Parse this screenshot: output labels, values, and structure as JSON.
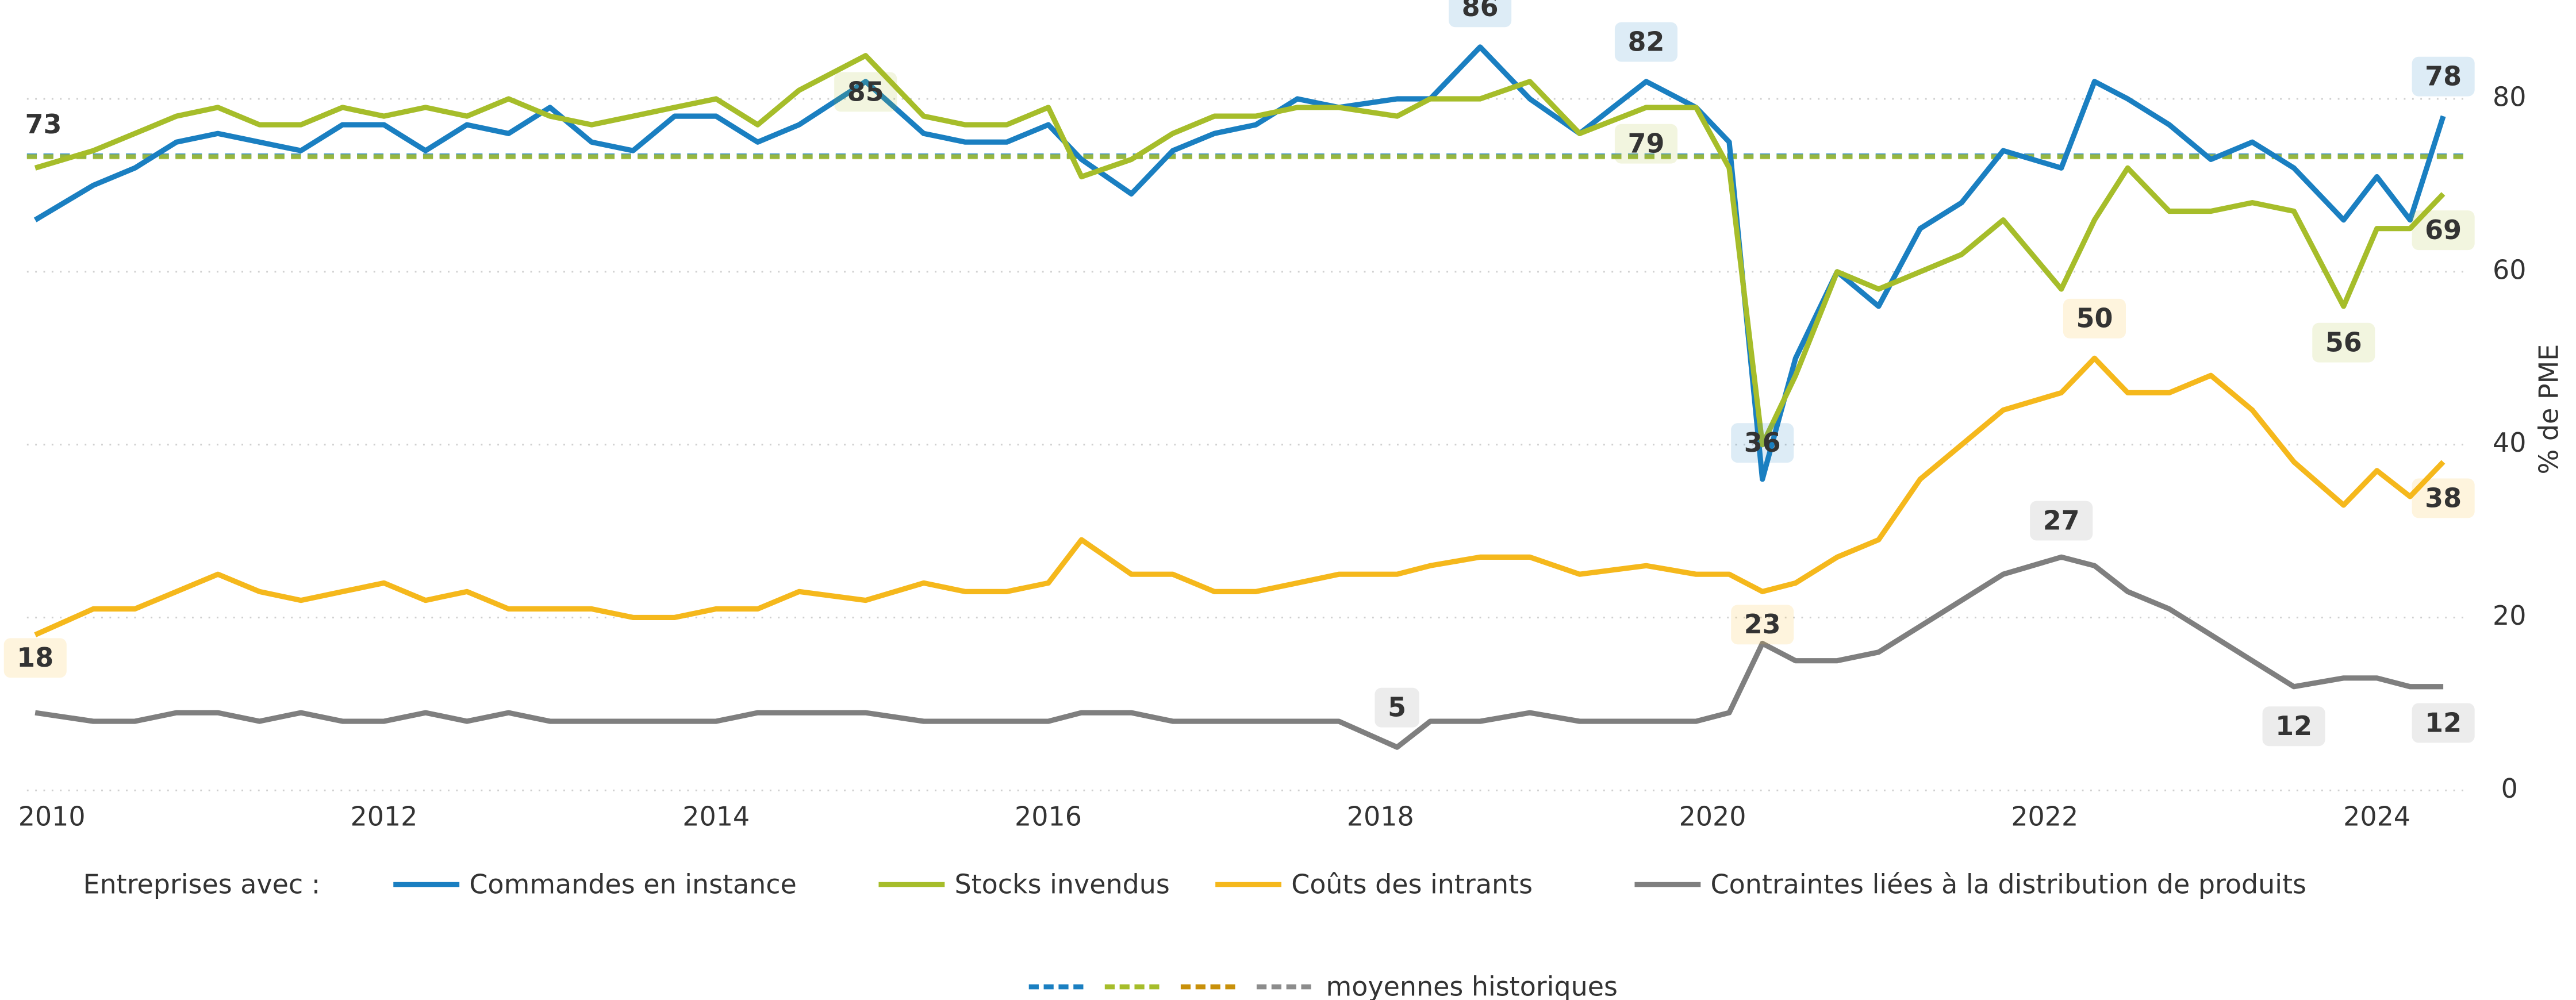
{
  "chart_data": {
    "type": "line",
    "y_axis_label": "% de PME",
    "legend_title": "Entreprises avec :",
    "average_legend": "moyennes historiques",
    "xlim": [
      2009.85,
      2024.55
    ],
    "xticks": [
      2010,
      2012,
      2014,
      2016,
      2018,
      2020,
      2022,
      2024
    ],
    "ylim": [
      0,
      88
    ],
    "yticks": [
      0,
      20,
      40,
      60,
      80
    ],
    "grid": true,
    "x": [
      2009.9,
      2010.25,
      2010.5,
      2010.75,
      2011,
      2011.25,
      2011.5,
      2011.75,
      2012,
      2012.25,
      2012.5,
      2012.75,
      2013,
      2013.25,
      2013.5,
      2013.75,
      2014,
      2014.25,
      2014.5,
      2014.9,
      2015.25,
      2015.5,
      2015.75,
      2016,
      2016.2,
      2016.5,
      2016.75,
      2017,
      2017.25,
      2017.5,
      2017.75,
      2018.1,
      2018.3,
      2018.6,
      2018.9,
      2019.2,
      2019.6,
      2019.9,
      2020.1,
      2020.3,
      2020.5,
      2020.75,
      2021,
      2021.25,
      2021.5,
      2021.75,
      2022.1,
      2022.3,
      2022.5,
      2022.75,
      2023,
      2023.25,
      2023.5,
      2023.8,
      2024,
      2024.2,
      2024.4
    ],
    "series": [
      {
        "name": "Commandes en instance",
        "color": "#1a7fc1",
        "average": 73.4,
        "average_label": "73",
        "average_color": "#1a7fc1",
        "values": [
          66,
          70,
          72,
          75,
          76,
          75,
          74,
          77,
          77,
          74,
          77,
          76,
          79,
          75,
          74,
          78,
          78,
          75,
          77,
          82,
          76,
          75,
          75,
          77,
          73,
          69,
          74,
          76,
          77,
          80,
          79,
          80,
          80,
          86,
          80,
          76,
          82,
          79,
          75,
          36,
          50,
          60,
          56,
          65,
          68,
          74,
          72,
          82,
          80,
          77,
          73,
          75,
          72,
          66,
          71,
          66,
          78
        ]
      },
      {
        "name": "Stocks invendus",
        "color": "#a6bd2a",
        "average": 73.3,
        "average_color": "#a6bd2a",
        "values": [
          72,
          74,
          76,
          78,
          79,
          77,
          77,
          79,
          78,
          79,
          78,
          80,
          78,
          77,
          78,
          79,
          80,
          77,
          81,
          85,
          78,
          77,
          77,
          79,
          71,
          73,
          76,
          78,
          78,
          79,
          79,
          78,
          80,
          80,
          82,
          76,
          79,
          79,
          72,
          40,
          48,
          60,
          58,
          60,
          62,
          66,
          58,
          66,
          72,
          67,
          67,
          68,
          67,
          56,
          65,
          65,
          69
        ]
      },
      {
        "name": "Coûts des intrants",
        "color": "#f5b81c",
        "average_color": "#c8900a",
        "values": [
          18,
          21,
          21,
          23,
          25,
          23,
          22,
          23,
          24,
          22,
          23,
          21,
          21,
          21,
          20,
          20,
          21,
          21,
          23,
          22,
          24,
          23,
          23,
          24,
          29,
          25,
          25,
          23,
          23,
          24,
          25,
          25,
          26,
          27,
          27,
          25,
          26,
          25,
          25,
          23,
          24,
          27,
          29,
          36,
          40,
          44,
          46,
          50,
          46,
          46,
          48,
          44,
          38,
          33,
          37,
          34,
          38
        ]
      },
      {
        "name": "Contraintes liées à la distribution de produits",
        "color": "#7f7f7f",
        "average_color": "#8c8c8c",
        "values": [
          9,
          8,
          8,
          9,
          9,
          8,
          9,
          8,
          8,
          9,
          8,
          9,
          8,
          8,
          8,
          8,
          8,
          9,
          9,
          9,
          8,
          8,
          8,
          8,
          9,
          9,
          8,
          8,
          8,
          8,
          8,
          5,
          8,
          8,
          9,
          8,
          8,
          8,
          9,
          17,
          15,
          15,
          16,
          19,
          22,
          25,
          27,
          26,
          23,
          21,
          18,
          15,
          12,
          13,
          13,
          12,
          12
        ]
      }
    ],
    "annotations": [
      {
        "series": 0,
        "x": 2018.6,
        "value": 86
      },
      {
        "series": 0,
        "x": 2019.6,
        "value": 82
      },
      {
        "series": 0,
        "x": 2020.3,
        "value": 36
      },
      {
        "series": 0,
        "x": 2024.4,
        "value": 78
      },
      {
        "series": 1,
        "x": 2014.9,
        "value": 85
      },
      {
        "series": 1,
        "x": 2019.6,
        "value": 79
      },
      {
        "series": 1,
        "x": 2023.8,
        "value": 56
      },
      {
        "series": 1,
        "x": 2024.4,
        "value": 69
      },
      {
        "series": 2,
        "x": 2009.9,
        "value": 18
      },
      {
        "series": 2,
        "x": 2020.3,
        "value": 23
      },
      {
        "series": 2,
        "x": 2022.3,
        "value": 50
      },
      {
        "series": 2,
        "x": 2024.4,
        "value": 38
      },
      {
        "series": 3,
        "x": 2018.1,
        "value": 5
      },
      {
        "series": 3,
        "x": 2022.1,
        "value": 27
      },
      {
        "series": 3,
        "x": 2023.5,
        "value": 12
      },
      {
        "series": 3,
        "x": 2024.4,
        "value": 12
      }
    ]
  }
}
